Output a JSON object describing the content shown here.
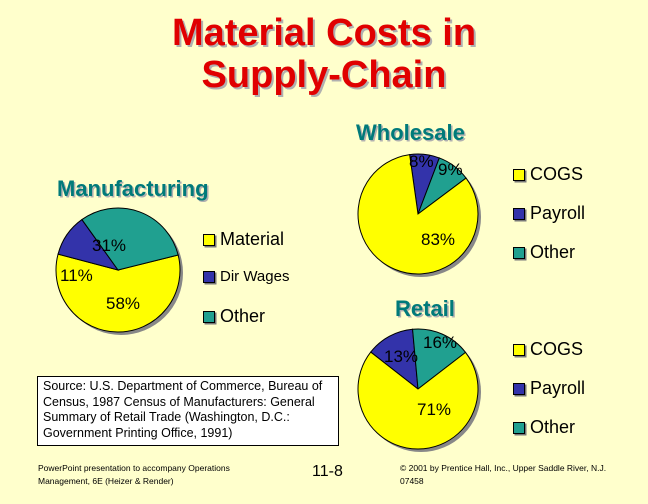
{
  "slide": {
    "title_line1": "Material Costs in",
    "title_line2": "Supply-Chain",
    "source_text": "Source: U.S. Department of Commerce, Bureau of Census, 1987 Census of Manufacturers: General Summary of Retail Trade (Washington, D.C.: Government Printing Office, 1991)",
    "footer_left_line1": "PowerPoint presentation to accompany Operations",
    "footer_left_line2": "Management, 6E (Heizer & Render)",
    "page_number": "11-8",
    "footer_right_line1": "© 2001 by Prentice Hall, Inc., Upper Saddle River, N.J.",
    "footer_right_line2": "07458"
  },
  "colors": {
    "background": "#ffffcc",
    "title": "#e00000",
    "chart_title": "#007a7a",
    "slice_yellow": "#ffff00",
    "slice_blue": "#3333aa",
    "slice_teal": "#20a090"
  },
  "chart_data": [
    {
      "type": "pie",
      "title": "Manufacturing",
      "slices": [
        {
          "label": "Material",
          "value": 58,
          "display": "58%",
          "color": "#ffff00"
        },
        {
          "label": "Dir Wages",
          "value": 11,
          "display": "11%",
          "color": "#3333aa"
        },
        {
          "label": "Other",
          "value": 31,
          "display": "31%",
          "color": "#20a090"
        }
      ]
    },
    {
      "type": "pie",
      "title": "Wholesale",
      "slices": [
        {
          "label": "COGS",
          "value": 83,
          "display": "83%",
          "color": "#ffff00"
        },
        {
          "label": "Payroll",
          "value": 8,
          "display": "8%",
          "color": "#3333aa"
        },
        {
          "label": "Other",
          "value": 9,
          "display": "9%",
          "color": "#20a090"
        }
      ]
    },
    {
      "type": "pie",
      "title": "Retail",
      "slices": [
        {
          "label": "COGS",
          "value": 71,
          "display": "71%",
          "color": "#ffff00"
        },
        {
          "label": "Payroll",
          "value": 13,
          "display": "13%",
          "color": "#3333aa"
        },
        {
          "label": "Other",
          "value": 16,
          "display": "16%",
          "color": "#20a090"
        }
      ]
    }
  ]
}
